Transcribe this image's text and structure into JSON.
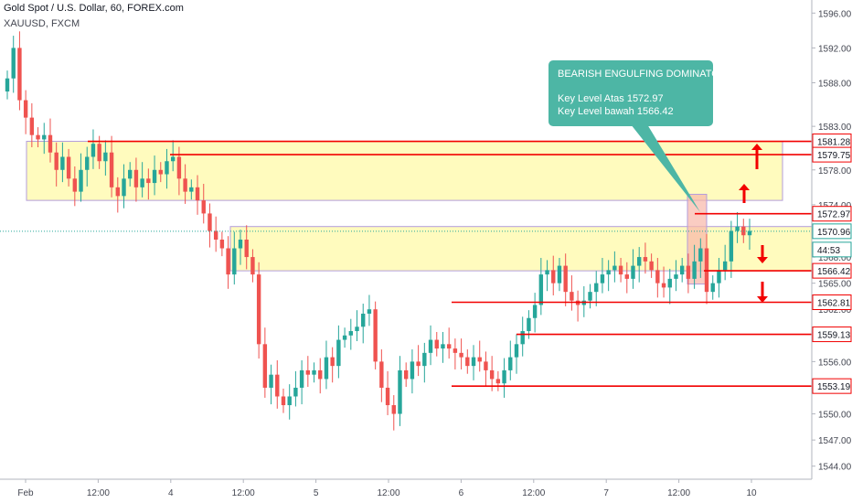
{
  "header": {
    "title": "Gold Spot / U.S. Dollar, 60, FOREX.com",
    "subtitle": "XAUUSD, FXCM"
  },
  "callout": {
    "title": "BEARISH ENGULFING DOMINATOR",
    "line1": "Key Level Atas 1572.97",
    "line2": "Key Level bawah 1566.42"
  },
  "colors": {
    "up": "#26a69a",
    "down": "#ef5350",
    "zone_fill": "#fff9a8",
    "zone_border": "#b39ddb",
    "level": "#f20000",
    "callout": "#4db6a5",
    "engulf_box": "#f8b6a8"
  },
  "chart_data": {
    "type": "candlestick",
    "title": "Gold Spot / U.S. Dollar, 60, FOREX.com",
    "ylim": [
      1542.5,
      1597.5
    ],
    "y_ticks": [
      "1544.00",
      "1547.00",
      "1550.00",
      "1553.00",
      "1556.00",
      "1559.00",
      "1562.00",
      "1565.00",
      "1568.00",
      "1571.00",
      "1574.00",
      "1578.00",
      "1583.00",
      "1588.00",
      "1592.00",
      "1596.00"
    ],
    "x_ticks": [
      "Feb",
      "12:00",
      "4",
      "12:00",
      "5",
      "12:00",
      "6",
      "12:00",
      "7",
      "12:00",
      "10"
    ],
    "levels": [
      {
        "label": "1581.28",
        "value": 1581.28
      },
      {
        "label": "1579.75",
        "value": 1579.75
      },
      {
        "label": "1572.97",
        "value": 1572.97
      },
      {
        "label": "1566.42",
        "value": 1566.42
      },
      {
        "label": "1562.81",
        "value": 1562.81
      },
      {
        "label": "1559.13",
        "value": 1559.13
      },
      {
        "label": "1553.19",
        "value": 1553.19
      }
    ],
    "last_price": {
      "label": "1570.96",
      "value": 1570.96
    },
    "countdown": "44:53",
    "zones": [
      {
        "from": 1574.5,
        "to": 1581.28
      },
      {
        "from": 1566.42,
        "to": 1571.5
      }
    ],
    "arrows": [
      "up",
      "up",
      "down",
      "down"
    ],
    "closes": [
      1588.5,
      1592,
      1586,
      1584,
      1582,
      1581.5,
      1582,
      1580,
      1578,
      1579.5,
      1577,
      1575.5,
      1578,
      1579.5,
      1581,
      1579,
      1580,
      1576,
      1575,
      1577,
      1578,
      1576,
      1577,
      1576.5,
      1578,
      1577.5,
      1579,
      1579.5,
      1577,
      1575.5,
      1576,
      1574.5,
      1573,
      1571,
      1570,
      1569,
      1566,
      1569,
      1570,
      1568,
      1566,
      1558,
      1553,
      1554.5,
      1552,
      1551,
      1552,
      1553,
      1555,
      1554.5,
      1555,
      1554,
      1556.5,
      1555.5,
      1558.5,
      1559,
      1559.5,
      1560,
      1561.5,
      1562,
      1556,
      1553,
      1551,
      1550,
      1555,
      1554,
      1556,
      1555.5,
      1557,
      1558.5,
      1557.5,
      1558,
      1557.5,
      1557,
      1556.5,
      1555.5,
      1556.5,
      1556,
      1555,
      1554,
      1553.5,
      1555,
      1556.5,
      1558,
      1559.5,
      1561,
      1562.5,
      1566,
      1566.5,
      1565,
      1567,
      1564,
      1563,
      1562.5,
      1563,
      1564,
      1565,
      1566,
      1566.5,
      1567,
      1566,
      1565.5,
      1567,
      1568,
      1567.5,
      1566.5,
      1565,
      1564.5,
      1565.5,
      1566,
      1567,
      1565.5,
      1567.5,
      1569,
      1564,
      1565,
      1566.5,
      1567.5,
      1571,
      1571.5,
      1570.5,
      1571
    ]
  }
}
